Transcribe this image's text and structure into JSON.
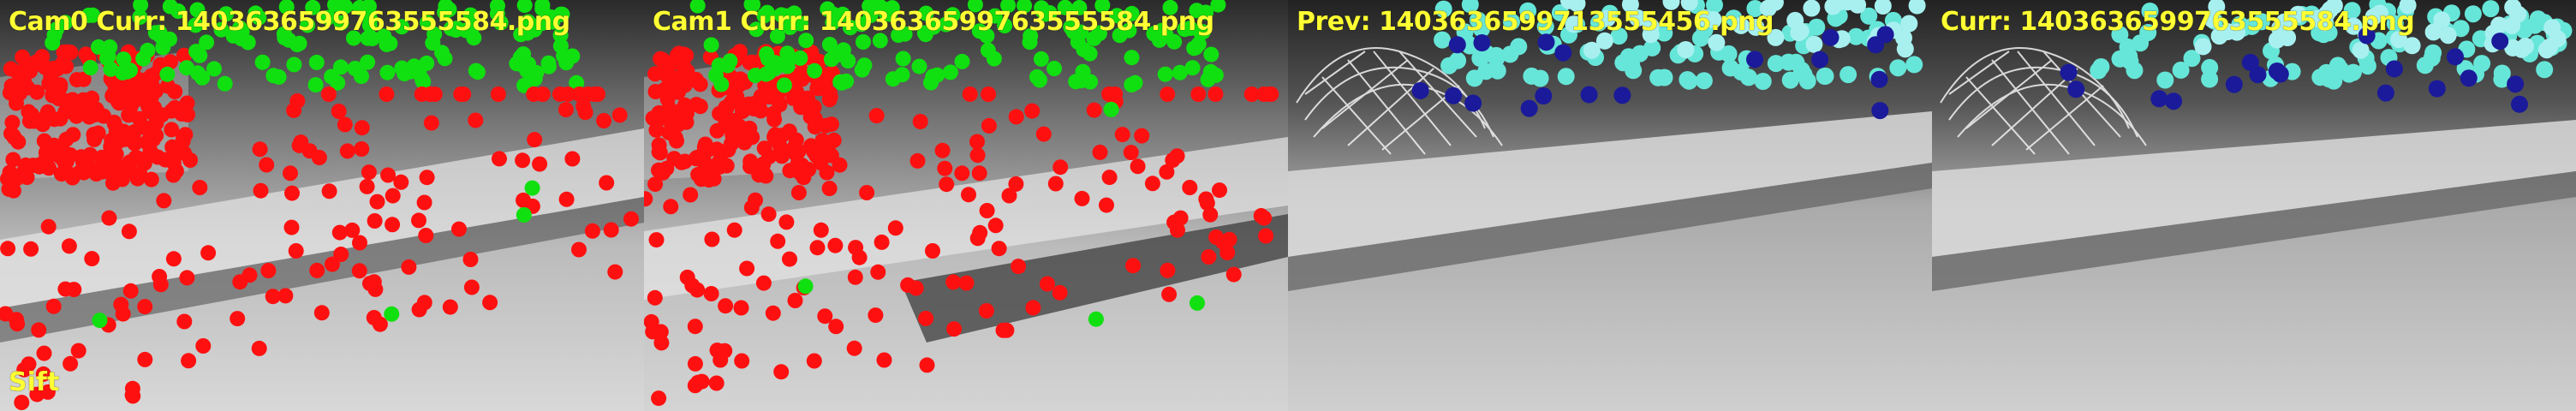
{
  "panels": [
    {
      "id": "cam0",
      "title": "Cam0 Curr: 1403636599763555584.png",
      "point_style": "red-green"
    },
    {
      "id": "cam1",
      "title": "Cam1 Curr: 1403636599763555584.png",
      "point_style": "red-green"
    },
    {
      "id": "prev",
      "title": "Prev: 1403636599713555456.png",
      "point_style": "cyan-blue"
    },
    {
      "id": "curr",
      "title": "Curr: 1403636599763555584.png",
      "point_style": "cyan-blue"
    }
  ],
  "method_label": "Sift",
  "colors": {
    "caption": "#ffff33",
    "feature_red": "#ff1010",
    "feature_green": "#10e010",
    "feature_cyan": "#66e6d8",
    "feature_light_cyan": "#a8f0f0",
    "feature_blue": "#1a1a9a"
  }
}
